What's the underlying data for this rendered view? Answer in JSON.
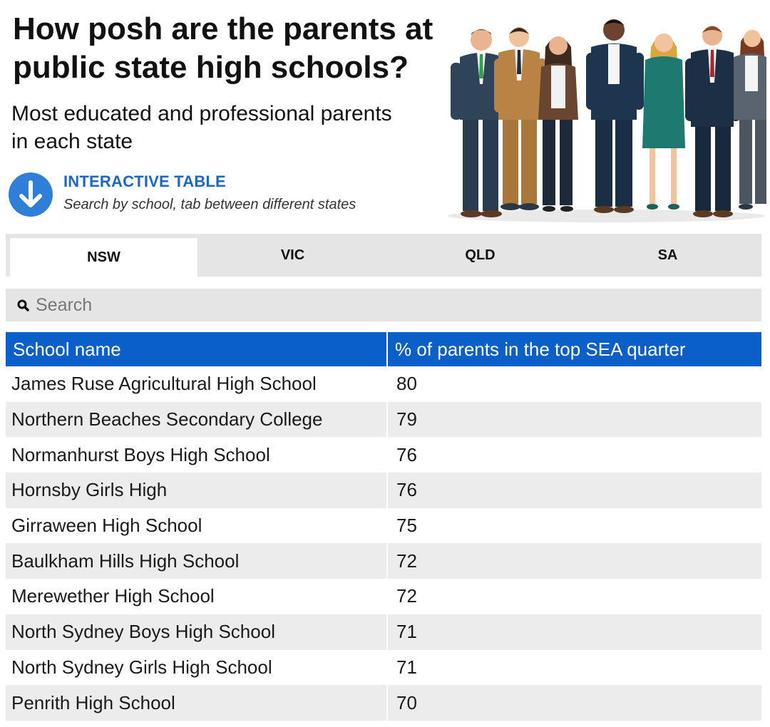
{
  "title": "How posh are the parents at public state high schools?",
  "subtitle": "Most educated and professional parents in each state",
  "interactive": {
    "label": "INTERACTIVE TABLE",
    "hint": "Search by school, tab between different states",
    "icon": "down-arrow-icon"
  },
  "tabs": [
    {
      "label": "NSW",
      "active": true
    },
    {
      "label": "VIC",
      "active": false
    },
    {
      "label": "QLD",
      "active": false
    },
    {
      "label": "SA",
      "active": false
    }
  ],
  "search": {
    "placeholder": "Search",
    "value": "",
    "icon": "search-icon"
  },
  "table": {
    "headers": [
      "School name",
      "% of parents in the top SEA quarter"
    ],
    "rows": [
      [
        "James Ruse Agricultural High School",
        "80"
      ],
      [
        "Northern Beaches Secondary College",
        "79"
      ],
      [
        "Normanhurst Boys High School",
        "76"
      ],
      [
        "Hornsby Girls High",
        "76"
      ],
      [
        "Girraween High School",
        "75"
      ],
      [
        "Baulkham Hills High School",
        "72"
      ],
      [
        "Merewether High School",
        "72"
      ],
      [
        "North Sydney Boys High School",
        "71"
      ],
      [
        "North Sydney Girls High School",
        "71"
      ],
      [
        "Penrith High School",
        "70"
      ]
    ]
  },
  "colors": {
    "accent": "#0a5fc9",
    "link": "#1a66c9",
    "icon_circle": "#2f7fd8",
    "tab_bg": "#e5e5e5",
    "row_alt": "#ececec"
  }
}
